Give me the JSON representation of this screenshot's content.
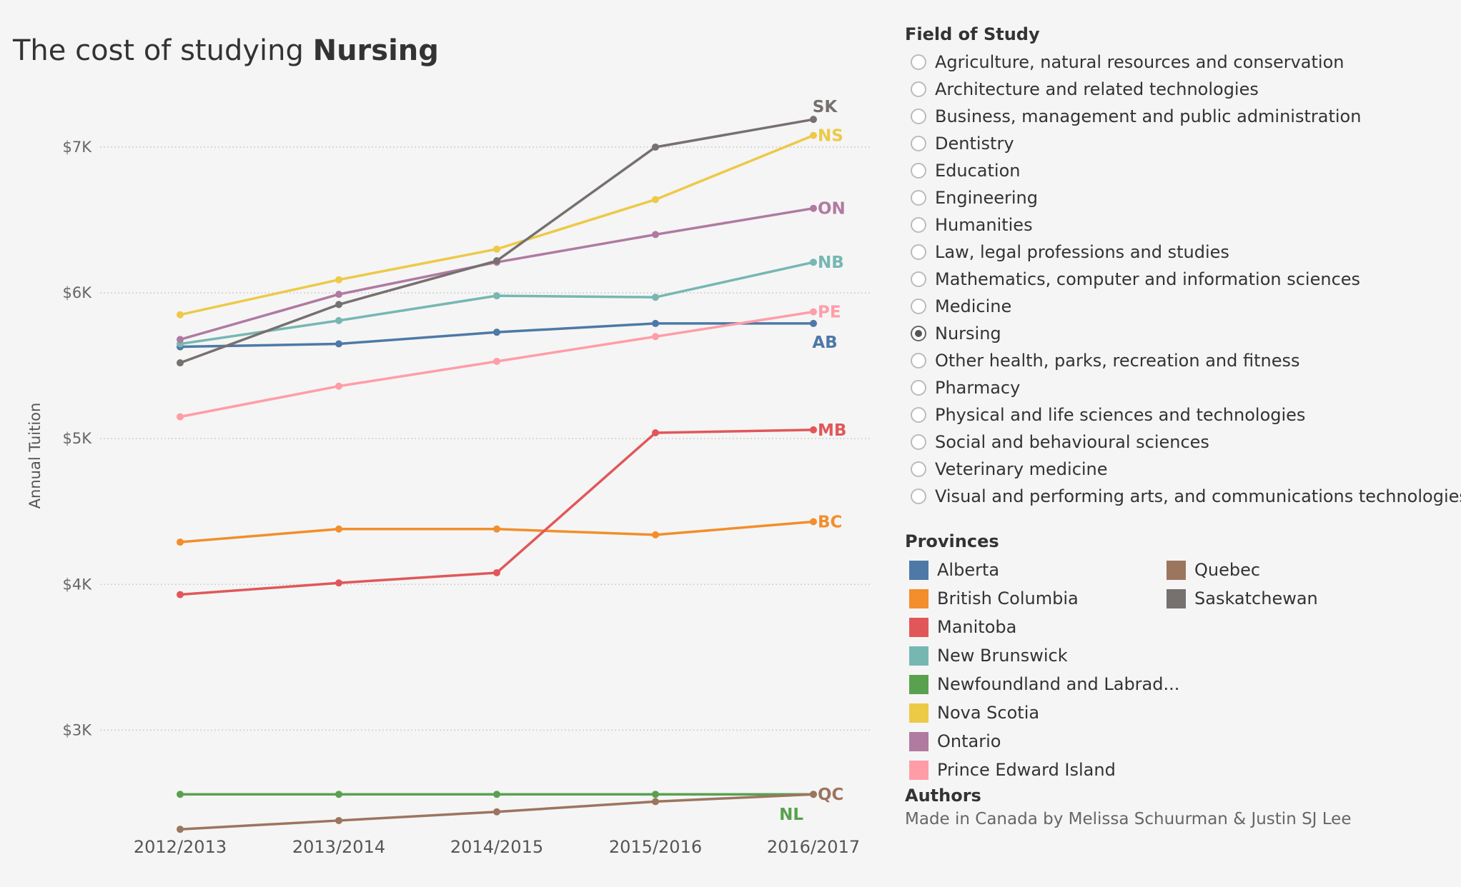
{
  "title": {
    "prefix": "The cost of studying ",
    "field": "Nursing"
  },
  "chart_data": {
    "type": "line",
    "x": [
      "2012/2013",
      "2013/2014",
      "2014/2015",
      "2015/2016",
      "2016/2017"
    ],
    "ylabel": "Annual Tuition",
    "ylim": [
      2000,
      7600
    ],
    "yticks": [
      {
        "value": 3000,
        "label": "$3K"
      },
      {
        "value": 4000,
        "label": "$4K"
      },
      {
        "value": 5000,
        "label": "$5K"
      },
      {
        "value": 6000,
        "label": "$6K"
      },
      {
        "value": 7000,
        "label": "$7K"
      }
    ],
    "grid": "horizontal dotted",
    "series": [
      {
        "name": "Alberta",
        "label": "AB",
        "color": "#4e79a7",
        "values": [
          5630,
          5650,
          5730,
          5790,
          5790
        ]
      },
      {
        "name": "British Columbia",
        "label": "BC",
        "color": "#f28e2b",
        "values": [
          4290,
          4380,
          4380,
          4340,
          4430
        ]
      },
      {
        "name": "Manitoba",
        "label": "MB",
        "color": "#e15759",
        "values": [
          3930,
          4010,
          4080,
          5040,
          5060
        ]
      },
      {
        "name": "New Brunswick",
        "label": "NB",
        "color": "#76b7b2",
        "values": [
          5650,
          5810,
          5980,
          5970,
          6210
        ]
      },
      {
        "name": "Newfoundland and Labrad...",
        "label": "NL",
        "color": "#59a14f",
        "values": [
          2560,
          2560,
          2560,
          2560,
          2560
        ]
      },
      {
        "name": "Nova Scotia",
        "label": "NS",
        "color": "#edc948",
        "values": [
          5850,
          6090,
          6300,
          6640,
          7080
        ]
      },
      {
        "name": "Ontario",
        "label": "ON",
        "color": "#b07aa1",
        "values": [
          5680,
          5990,
          6210,
          6400,
          6580
        ]
      },
      {
        "name": "Prince Edward Island",
        "label": "PE",
        "color": "#ff9da7",
        "values": [
          5150,
          5360,
          5530,
          5700,
          5870
        ]
      },
      {
        "name": "Quebec",
        "label": "QC",
        "color": "#9c755f",
        "values": [
          2320,
          2380,
          2440,
          2510,
          2560
        ]
      },
      {
        "name": "Saskatchewan",
        "label": "SK",
        "color": "#76706f",
        "values": [
          5520,
          5920,
          6220,
          7000,
          7190
        ]
      }
    ]
  },
  "field_of_study": {
    "title": "Field of Study",
    "selected": "Nursing",
    "options": [
      "Agriculture, natural resources and conservation",
      "Architecture and related technologies",
      "Business, management and public administration",
      "Dentistry",
      "Education",
      "Engineering",
      "Humanities",
      "Law, legal professions and studies",
      "Mathematics, computer and information sciences",
      "Medicine",
      "Nursing",
      "Other health, parks, recreation and fitness",
      "Pharmacy",
      "Physical and life sciences and technologies",
      "Social and behavioural sciences",
      "Veterinary medicine",
      "Visual and performing arts, and communications technologies"
    ]
  },
  "provinces": {
    "title": "Provinces"
  },
  "authors": {
    "title": "Authors",
    "text": "Made in Canada by Melissa Schuurman & Justin SJ Lee"
  }
}
